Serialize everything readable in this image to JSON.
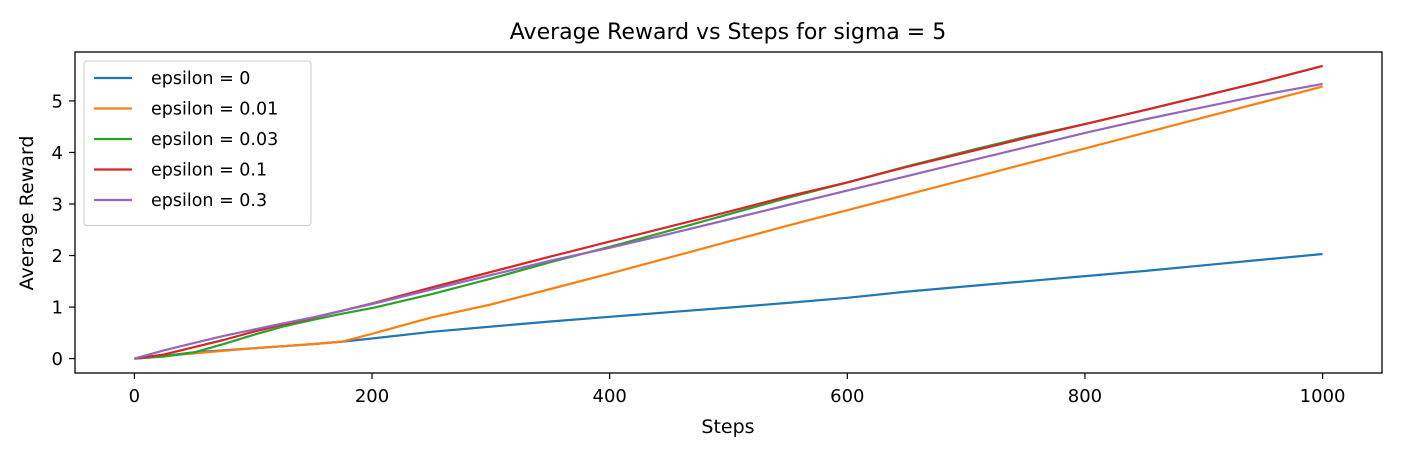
{
  "chart_data": {
    "type": "line",
    "title": "Average Reward vs Steps for sigma = 5",
    "xlabel": "Steps",
    "ylabel": "Average Reward",
    "xlim": [
      -50,
      1050
    ],
    "ylim": [
      -0.28,
      5.95
    ],
    "xticks": [
      0,
      200,
      400,
      600,
      800,
      1000
    ],
    "yticks": [
      0,
      1,
      2,
      3,
      4,
      5
    ],
    "grid": false,
    "legend_position": "top-left",
    "series": [
      {
        "name": "epsilon = 0",
        "color": "#1f77b4",
        "points": [
          [
            0,
            0
          ],
          [
            25,
            0.05
          ],
          [
            50,
            0.12
          ],
          [
            75,
            0.16
          ],
          [
            100,
            0.2
          ],
          [
            125,
            0.24
          ],
          [
            150,
            0.28
          ],
          [
            175,
            0.33
          ],
          [
            200,
            0.39
          ],
          [
            250,
            0.52
          ],
          [
            300,
            0.62
          ],
          [
            350,
            0.72
          ],
          [
            400,
            0.81
          ],
          [
            450,
            0.9
          ],
          [
            500,
            0.99
          ],
          [
            550,
            1.08
          ],
          [
            600,
            1.18
          ],
          [
            650,
            1.3
          ],
          [
            700,
            1.4
          ],
          [
            750,
            1.5
          ],
          [
            800,
            1.6
          ],
          [
            850,
            1.7
          ],
          [
            900,
            1.81
          ],
          [
            950,
            1.92
          ],
          [
            1000,
            2.03
          ]
        ]
      },
      {
        "name": "epsilon = 0.01",
        "color": "#ff7f0e",
        "points": [
          [
            0,
            0
          ],
          [
            25,
            0.05
          ],
          [
            50,
            0.1
          ],
          [
            75,
            0.15
          ],
          [
            100,
            0.2
          ],
          [
            125,
            0.24
          ],
          [
            150,
            0.28
          ],
          [
            175,
            0.33
          ],
          [
            200,
            0.48
          ],
          [
            250,
            0.8
          ],
          [
            300,
            1.05
          ],
          [
            350,
            1.35
          ],
          [
            400,
            1.65
          ],
          [
            450,
            1.96
          ],
          [
            500,
            2.27
          ],
          [
            550,
            2.58
          ],
          [
            600,
            2.88
          ],
          [
            650,
            3.18
          ],
          [
            700,
            3.48
          ],
          [
            750,
            3.78
          ],
          [
            800,
            4.08
          ],
          [
            850,
            4.38
          ],
          [
            900,
            4.68
          ],
          [
            950,
            4.98
          ],
          [
            1000,
            5.28
          ]
        ]
      },
      {
        "name": "epsilon = 0.03",
        "color": "#2ca02c",
        "points": [
          [
            0,
            0
          ],
          [
            25,
            0.04
          ],
          [
            50,
            0.12
          ],
          [
            75,
            0.28
          ],
          [
            100,
            0.46
          ],
          [
            125,
            0.62
          ],
          [
            150,
            0.75
          ],
          [
            175,
            0.87
          ],
          [
            200,
            0.98
          ],
          [
            250,
            1.25
          ],
          [
            300,
            1.55
          ],
          [
            350,
            1.87
          ],
          [
            400,
            2.17
          ],
          [
            450,
            2.48
          ],
          [
            500,
            2.8
          ],
          [
            550,
            3.12
          ],
          [
            600,
            3.42
          ],
          [
            650,
            3.73
          ],
          [
            700,
            4.02
          ],
          [
            750,
            4.3
          ],
          [
            800,
            4.55
          ],
          [
            850,
            4.82
          ],
          [
            900,
            5.1
          ],
          [
            950,
            5.38
          ],
          [
            1000,
            5.68
          ]
        ]
      },
      {
        "name": "epsilon = 0.1",
        "color": "#d62728",
        "points": [
          [
            0,
            0
          ],
          [
            25,
            0.08
          ],
          [
            50,
            0.22
          ],
          [
            75,
            0.36
          ],
          [
            100,
            0.52
          ],
          [
            125,
            0.66
          ],
          [
            150,
            0.79
          ],
          [
            175,
            0.93
          ],
          [
            200,
            1.07
          ],
          [
            250,
            1.38
          ],
          [
            300,
            1.68
          ],
          [
            350,
            1.98
          ],
          [
            400,
            2.27
          ],
          [
            450,
            2.56
          ],
          [
            500,
            2.85
          ],
          [
            550,
            3.15
          ],
          [
            600,
            3.42
          ],
          [
            650,
            3.72
          ],
          [
            700,
            4.0
          ],
          [
            750,
            4.28
          ],
          [
            800,
            4.55
          ],
          [
            850,
            4.82
          ],
          [
            900,
            5.1
          ],
          [
            950,
            5.38
          ],
          [
            1000,
            5.68
          ]
        ]
      },
      {
        "name": "epsilon = 0.3",
        "color": "#9467bd",
        "points": [
          [
            0,
            0
          ],
          [
            25,
            0.16
          ],
          [
            50,
            0.3
          ],
          [
            75,
            0.44
          ],
          [
            100,
            0.56
          ],
          [
            125,
            0.68
          ],
          [
            150,
            0.8
          ],
          [
            175,
            0.93
          ],
          [
            200,
            1.06
          ],
          [
            250,
            1.34
          ],
          [
            300,
            1.62
          ],
          [
            350,
            1.9
          ],
          [
            400,
            2.15
          ],
          [
            450,
            2.42
          ],
          [
            500,
            2.7
          ],
          [
            550,
            2.98
          ],
          [
            600,
            3.26
          ],
          [
            650,
            3.54
          ],
          [
            700,
            3.82
          ],
          [
            750,
            4.1
          ],
          [
            800,
            4.38
          ],
          [
            850,
            4.64
          ],
          [
            900,
            4.88
          ],
          [
            950,
            5.12
          ],
          [
            1000,
            5.33
          ]
        ]
      }
    ]
  }
}
